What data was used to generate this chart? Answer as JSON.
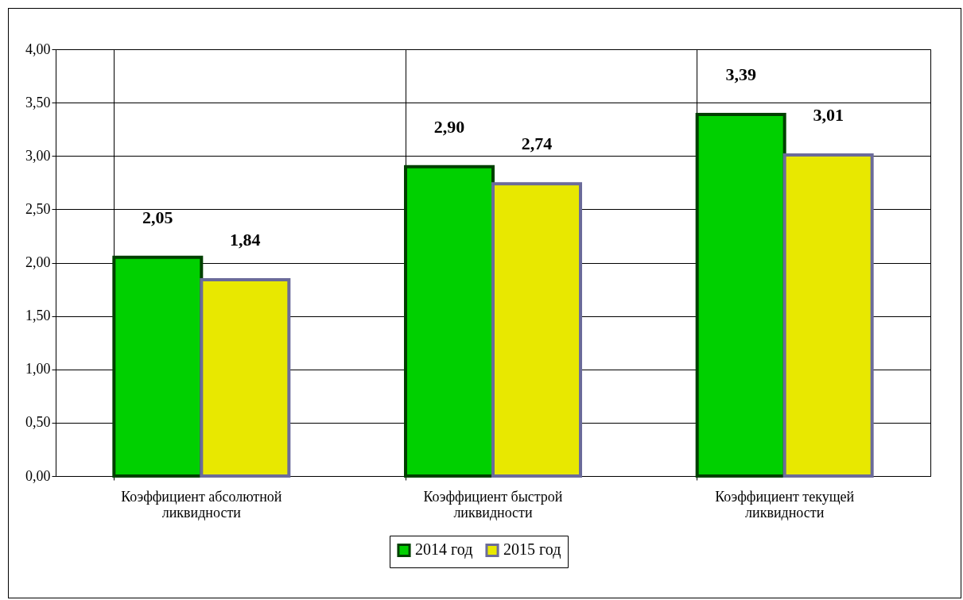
{
  "chart_data": {
    "type": "bar",
    "categories": [
      "Коэффициент абсолютной ликвидности",
      "Коэффициент быстрой ликвидности",
      "Коэффициент текущей ликвидности"
    ],
    "series": [
      {
        "name": "2014 год",
        "color": "#00d000",
        "values": [
          2.05,
          2.9,
          3.39
        ],
        "value_labels": [
          "2,05",
          "2,90",
          "3,39"
        ]
      },
      {
        "name": "2015 год",
        "color": "#e8e800",
        "values": [
          1.84,
          2.74,
          3.01
        ],
        "value_labels": [
          "1,84",
          "2,74",
          "3,01"
        ]
      }
    ],
    "ylim": [
      0,
      4
    ],
    "yticks": [
      {
        "value": 0,
        "label": "0,00"
      },
      {
        "value": 0.5,
        "label": "0,50"
      },
      {
        "value": 1,
        "label": "1,00"
      },
      {
        "value": 1.5,
        "label": "1,50"
      },
      {
        "value": 2,
        "label": "2,00"
      },
      {
        "value": 2.5,
        "label": "2,50"
      },
      {
        "value": 3,
        "label": "3,00"
      },
      {
        "value": 3.5,
        "label": "3,50"
      },
      {
        "value": 4,
        "label": "4,00"
      }
    ],
    "grid": true,
    "legend": "bottom"
  }
}
